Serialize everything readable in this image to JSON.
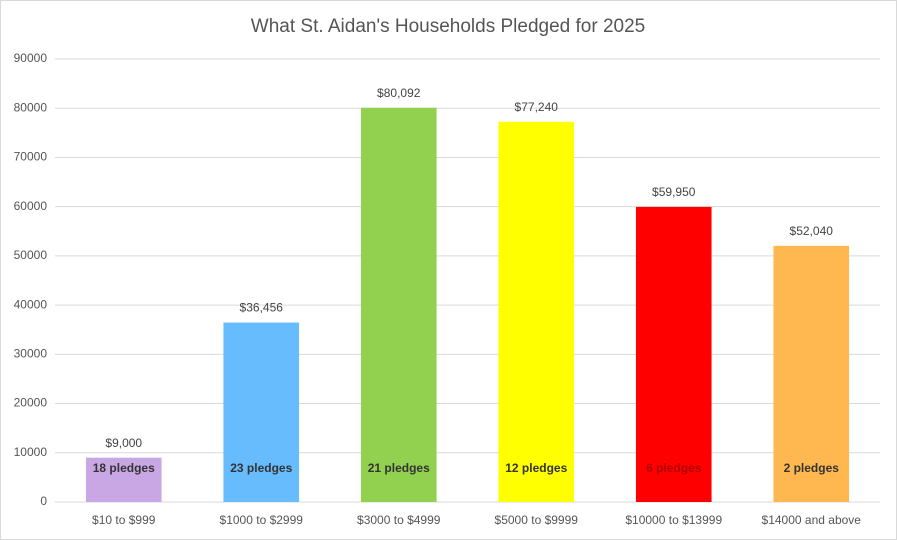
{
  "chart_data": {
    "type": "bar",
    "title": "What St. Aidan's Households Pledged for 2025",
    "categories": [
      "$10 to $999",
      "$1000 to $2999",
      "$3000 to $4999",
      "$5000 to $9999",
      "$10000 to $13999",
      "$14000 and above"
    ],
    "values": [
      9000,
      36456,
      80092,
      77240,
      59950,
      52040
    ],
    "value_labels": [
      "$9,000",
      "$36,456",
      "$80,092",
      "$77,240",
      "$59,950",
      "$52,040"
    ],
    "bar_labels": [
      "18 pledges",
      "23 pledges",
      "21 pledges",
      "12 pledges",
      "6 pledges",
      "2 pledges"
    ],
    "colors": [
      "#c9a7e4",
      "#66bcfd",
      "#92d050",
      "#ffff00",
      "#ff0000",
      "#ffb84f"
    ],
    "bar_label_colors": [
      "#333333",
      "#333333",
      "#333333",
      "#333333",
      "#b00000",
      "#333333"
    ],
    "ylim": [
      0,
      90000
    ],
    "yticks": [
      0,
      10000,
      20000,
      30000,
      40000,
      50000,
      60000,
      70000,
      80000,
      90000
    ],
    "grid": true
  }
}
